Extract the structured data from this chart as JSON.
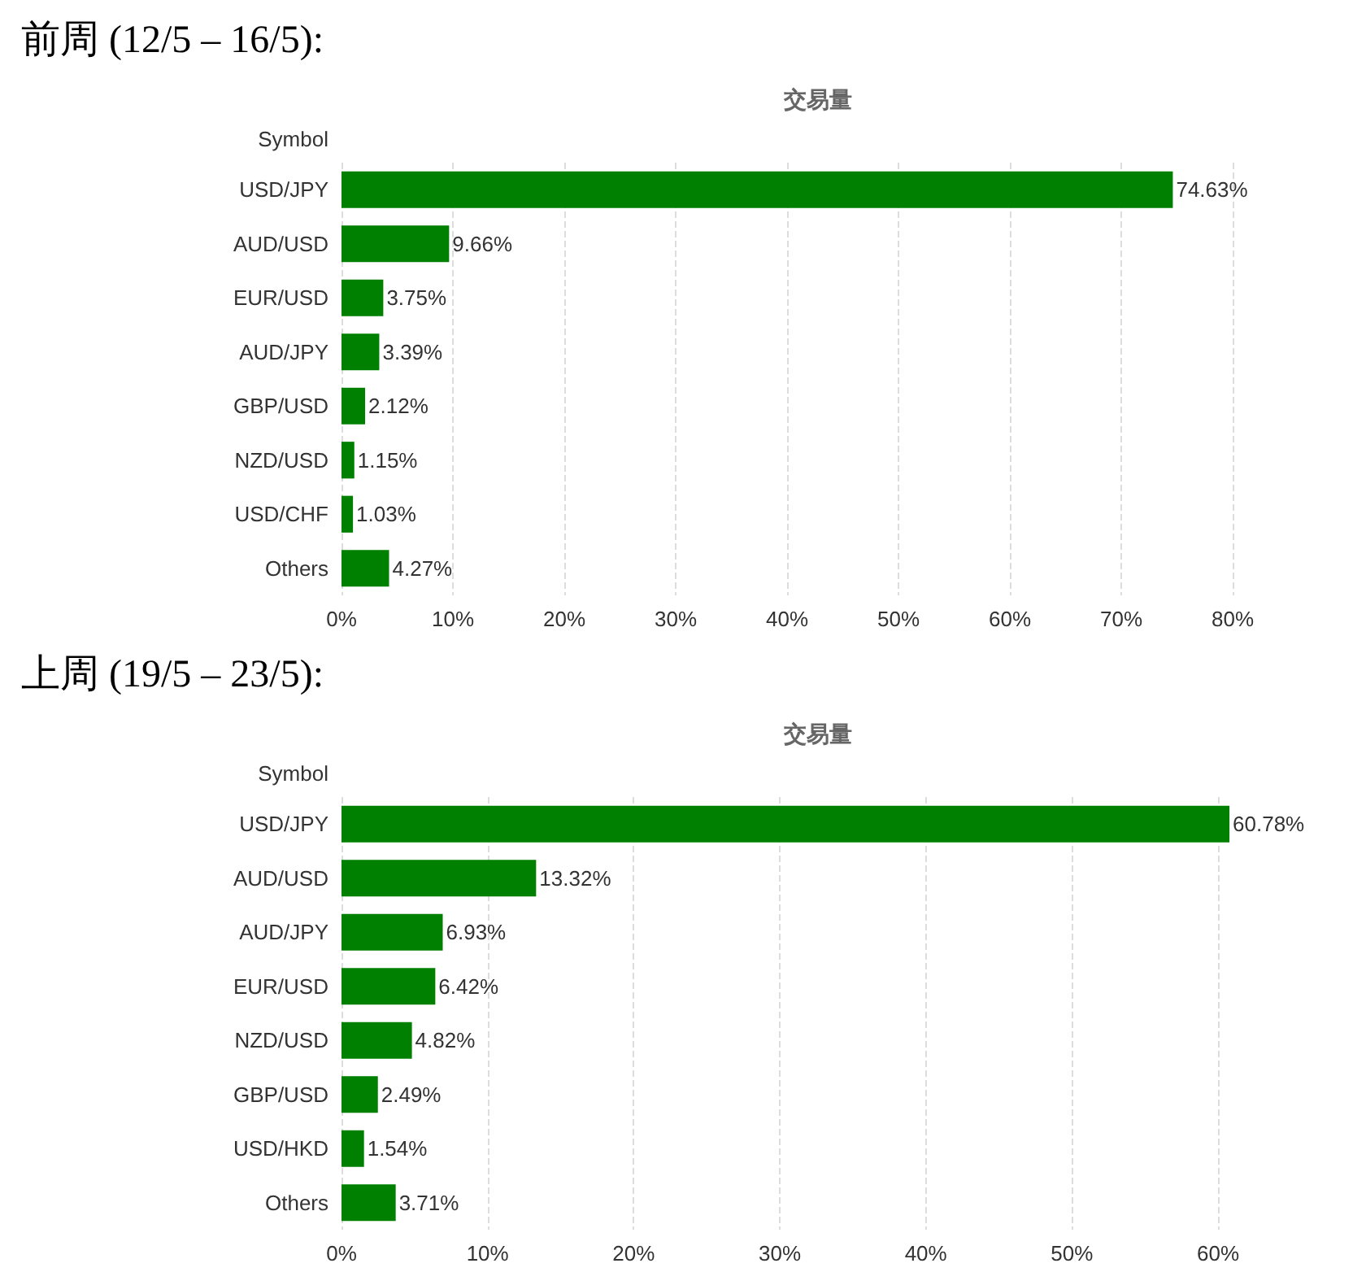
{
  "chart_data": [
    {
      "type": "bar",
      "orientation": "horizontal",
      "title": "前周 (12/5 – 16/5):",
      "subtitle": "交易量",
      "ylabel": "Symbol",
      "categories": [
        "USD/JPY",
        "AUD/USD",
        "EUR/USD",
        "AUD/JPY",
        "GBP/USD",
        "NZD/USD",
        "USD/CHF",
        "Others"
      ],
      "color": "#008000",
      "values": [
        74.63,
        9.66,
        3.75,
        3.39,
        2.12,
        1.15,
        1.03,
        4.27
      ],
      "value_labels": [
        "74.63%",
        "9.66%",
        "3.75%",
        "3.39%",
        "2.12%",
        "1.15%",
        "1.03%",
        "4.27%"
      ],
      "xlim": [
        0,
        80
      ],
      "xticks": [
        {
          "value": 0,
          "label": "0%"
        },
        {
          "value": 10,
          "label": "10%"
        },
        {
          "value": 20,
          "label": "20%"
        },
        {
          "value": 30,
          "label": "30%"
        },
        {
          "value": 40,
          "label": "40%"
        },
        {
          "value": 50,
          "label": "50%"
        },
        {
          "value": 60,
          "label": "60%"
        },
        {
          "value": 70,
          "label": "70%"
        },
        {
          "value": 80,
          "label": "80%"
        }
      ],
      "grid": "x"
    },
    {
      "type": "bar",
      "orientation": "horizontal",
      "title": "上周 (19/5 – 23/5):",
      "subtitle": "交易量",
      "ylabel": "Symbol",
      "categories": [
        "USD/JPY",
        "AUD/USD",
        "AUD/JPY",
        "EUR/USD",
        "NZD/USD",
        "GBP/USD",
        "USD/HKD",
        "Others"
      ],
      "color": "#008000",
      "values": [
        60.78,
        13.32,
        6.93,
        6.42,
        4.82,
        2.49,
        1.54,
        3.71
      ],
      "value_labels": [
        "60.78%",
        "13.32%",
        "6.93%",
        "6.42%",
        "4.82%",
        "2.49%",
        "1.54%",
        "3.71%"
      ],
      "xlim": [
        0,
        61
      ],
      "xticks": [
        {
          "value": 0,
          "label": "0%"
        },
        {
          "value": 10,
          "label": "10%"
        },
        {
          "value": 20,
          "label": "20%"
        },
        {
          "value": 30,
          "label": "30%"
        },
        {
          "value": 40,
          "label": "40%"
        },
        {
          "value": 50,
          "label": "50%"
        },
        {
          "value": 60,
          "label": "60%"
        }
      ],
      "grid": "x"
    }
  ]
}
